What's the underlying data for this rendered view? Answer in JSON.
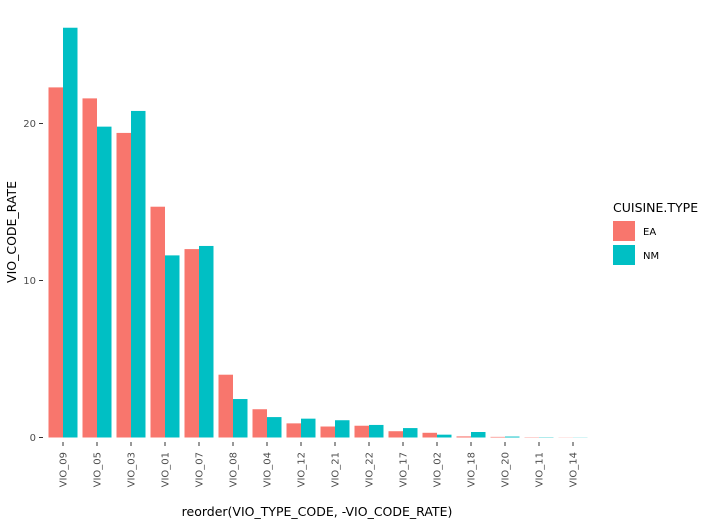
{
  "chart_data": {
    "type": "bar",
    "categories": [
      "VIO_09",
      "VIO_05",
      "VIO_03",
      "VIO_01",
      "VIO_07",
      "VIO_08",
      "VIO_04",
      "VIO_12",
      "VIO_21",
      "VIO_22",
      "VIO_17",
      "VIO_02",
      "VIO_18",
      "VIO_20",
      "VIO_11",
      "VIO_14"
    ],
    "series": [
      {
        "name": "EA",
        "color": "#F8766D",
        "values": [
          22.3,
          21.6,
          19.4,
          14.7,
          12.0,
          4.0,
          1.8,
          0.9,
          0.7,
          0.75,
          0.4,
          0.3,
          0.07,
          0.04,
          0.02,
          0.01
        ]
      },
      {
        "name": "NM",
        "color": "#00BFC4",
        "values": [
          26.1,
          19.8,
          20.8,
          11.6,
          12.2,
          2.45,
          1.3,
          1.2,
          1.1,
          0.8,
          0.6,
          0.18,
          0.35,
          0.06,
          0.02,
          0.01
        ]
      }
    ],
    "xlabel": "reorder(VIO_TYPE_CODE, -VIO_CODE_RATE)",
    "ylabel": "VIO_CODE_RATE",
    "yticks": [
      "0",
      "10",
      "20"
    ],
    "ylim": [
      0,
      26.5
    ],
    "legend": {
      "title": "CUISINE.TYPE",
      "position": "right"
    },
    "grid": false
  }
}
